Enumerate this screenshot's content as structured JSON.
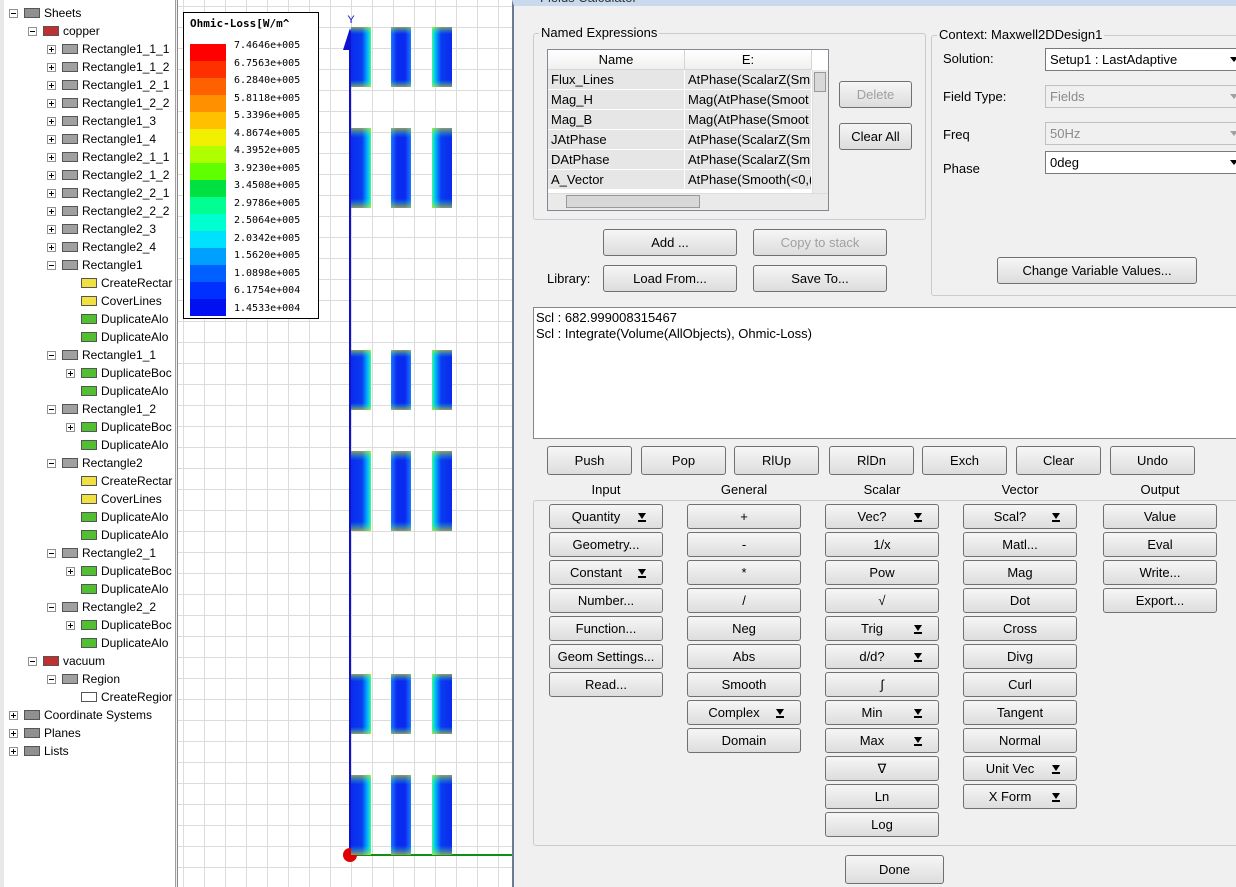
{
  "tree": {
    "nodes": [
      {
        "label": "Sheets",
        "level": 0,
        "expander": "minus"
      },
      {
        "label": "copper",
        "level": 1,
        "expander": "minus"
      },
      {
        "label": "Rectangle1_1_1",
        "level": 2,
        "expander": "plus"
      },
      {
        "label": "Rectangle1_1_2",
        "level": 2,
        "expander": "plus"
      },
      {
        "label": "Rectangle1_2_1",
        "level": 2,
        "expander": "plus"
      },
      {
        "label": "Rectangle1_2_2",
        "level": 2,
        "expander": "plus"
      },
      {
        "label": "Rectangle1_3",
        "level": 2,
        "expander": "plus"
      },
      {
        "label": "Rectangle1_4",
        "level": 2,
        "expander": "plus"
      },
      {
        "label": "Rectangle2_1_1",
        "level": 2,
        "expander": "plus"
      },
      {
        "label": "Rectangle2_1_2",
        "level": 2,
        "expander": "plus"
      },
      {
        "label": "Rectangle2_2_1",
        "level": 2,
        "expander": "plus"
      },
      {
        "label": "Rectangle2_2_2",
        "level": 2,
        "expander": "plus"
      },
      {
        "label": "Rectangle2_3",
        "level": 2,
        "expander": "plus"
      },
      {
        "label": "Rectangle2_4",
        "level": 2,
        "expander": "plus"
      },
      {
        "label": "Rectangle1",
        "level": 2,
        "expander": "minus"
      },
      {
        "label": "CreateRectar",
        "level": 3
      },
      {
        "label": "CoverLines",
        "level": 3
      },
      {
        "label": "DuplicateAlo",
        "level": 3
      },
      {
        "label": "DuplicateAlo",
        "level": 3
      },
      {
        "label": "Rectangle1_1",
        "level": 2,
        "expander": "minus"
      },
      {
        "label": "DuplicateBoc",
        "level": 3,
        "expander": "plus"
      },
      {
        "label": "DuplicateAlo",
        "level": 3
      },
      {
        "label": "Rectangle1_2",
        "level": 2,
        "expander": "minus"
      },
      {
        "label": "DuplicateBoc",
        "level": 3,
        "expander": "plus"
      },
      {
        "label": "DuplicateAlo",
        "level": 3
      },
      {
        "label": "Rectangle2",
        "level": 2,
        "expander": "minus"
      },
      {
        "label": "CreateRectar",
        "level": 3
      },
      {
        "label": "CoverLines",
        "level": 3
      },
      {
        "label": "DuplicateAlo",
        "level": 3
      },
      {
        "label": "DuplicateAlo",
        "level": 3
      },
      {
        "label": "Rectangle2_1",
        "level": 2,
        "expander": "minus"
      },
      {
        "label": "DuplicateBoc",
        "level": 3,
        "expander": "plus"
      },
      {
        "label": "DuplicateAlo",
        "level": 3
      },
      {
        "label": "Rectangle2_2",
        "level": 2,
        "expander": "minus"
      },
      {
        "label": "DuplicateBoc",
        "level": 3,
        "expander": "plus"
      },
      {
        "label": "DuplicateAlo",
        "level": 3
      },
      {
        "label": "vacuum",
        "level": 1,
        "expander": "minus"
      },
      {
        "label": "Region",
        "level": 2,
        "expander": "minus"
      },
      {
        "label": "CreateRegior",
        "level": 3
      },
      {
        "label": "Coordinate Systems",
        "level": 0,
        "expander": "plus"
      },
      {
        "label": "Planes",
        "level": 0,
        "expander": "plus"
      },
      {
        "label": "Lists",
        "level": 0,
        "expander": "plus"
      }
    ]
  },
  "legend": {
    "title": "Ohmic-Loss[W/m^",
    "labels": [
      "7.4646e+005",
      "6.7563e+005",
      "6.2840e+005",
      "5.8118e+005",
      "5.3396e+005",
      "4.8674e+005",
      "4.3952e+005",
      "3.9230e+005",
      "3.4508e+005",
      "2.9786e+005",
      "2.5064e+005",
      "2.0342e+005",
      "1.5620e+005",
      "1.0898e+005",
      "6.1754e+004",
      "1.4533e+004"
    ]
  },
  "viewport": {
    "axis_label": "Y"
  },
  "calculator": {
    "title": "Fields Calculator",
    "named_expressions": {
      "title": "Named Expressions",
      "columns": [
        "Name",
        "E:"
      ],
      "rows": [
        [
          "Flux_Lines",
          "AtPhase(ScalarZ(Sm"
        ],
        [
          "Mag_H",
          "Mag(AtPhase(Smoot"
        ],
        [
          "Mag_B",
          "Mag(AtPhase(Smoot"
        ],
        [
          "JAtPhase",
          "AtPhase(ScalarZ(Sm"
        ],
        [
          "DAtPhase",
          "AtPhase(ScalarZ(Sm"
        ],
        [
          "A_Vector",
          "AtPhase(Smooth(<0,("
        ]
      ],
      "delete": {
        "label": "Delete",
        "enabled": false
      },
      "clear_all": {
        "label": "Clear All",
        "enabled": true
      }
    },
    "add": {
      "label": "Add ...",
      "enabled": true
    },
    "copy_to_stack": {
      "label": "Copy to stack",
      "enabled": false
    },
    "library_label": "Library:",
    "load_from": {
      "label": "Load From...",
      "enabled": true
    },
    "save_to": {
      "label": "Save To...",
      "enabled": true
    },
    "context": {
      "title": "Context: Maxwell2DDesign1",
      "fields": [
        {
          "label": "Solution:",
          "value": "Setup1 : LastAdaptive",
          "enabled": true
        },
        {
          "label": "Field Type:",
          "value": "Fields",
          "enabled": false
        },
        {
          "label": "Freq",
          "value": "50Hz",
          "enabled": false
        },
        {
          "label": "Phase",
          "value": "0deg",
          "enabled": true
        }
      ],
      "change_button": "Change Variable Values..."
    },
    "stack": [
      "Scl : 682.999008315467",
      "Scl : Integrate(Volume(AllObjects), Ohmic-Loss)"
    ],
    "stack_buttons": [
      "Push",
      "Pop",
      "RlUp",
      "RlDn",
      "Exch",
      "Clear",
      "Undo"
    ],
    "columns": [
      {
        "title": "Input",
        "buttons": [
          {
            "label": "Quantity",
            "dropdown": true
          },
          {
            "label": "Geometry..."
          },
          {
            "label": "Constant",
            "dropdown": true
          },
          {
            "label": "Number..."
          },
          {
            "label": "Function..."
          },
          {
            "label": "Geom Settings..."
          },
          {
            "label": "Read..."
          }
        ]
      },
      {
        "title": "General",
        "buttons": [
          {
            "label": "+"
          },
          {
            "label": "-"
          },
          {
            "label": "*"
          },
          {
            "label": "/"
          },
          {
            "label": "Neg"
          },
          {
            "label": "Abs"
          },
          {
            "label": "Smooth"
          },
          {
            "label": "Complex",
            "dropdown": true
          },
          {
            "label": "Domain"
          }
        ]
      },
      {
        "title": "Scalar",
        "buttons": [
          {
            "label": "Vec?",
            "dropdown": true
          },
          {
            "label": "1/x"
          },
          {
            "label": "Pow"
          },
          {
            "label": "√"
          },
          {
            "label": "Trig",
            "dropdown": true
          },
          {
            "label": "d/d?",
            "dropdown": true
          },
          {
            "label": "∫"
          },
          {
            "label": "Min",
            "dropdown": true
          },
          {
            "label": "Max",
            "dropdown": true
          },
          {
            "label": "∇"
          },
          {
            "label": "Ln"
          },
          {
            "label": "Log"
          }
        ]
      },
      {
        "title": "Vector",
        "buttons": [
          {
            "label": "Scal?",
            "dropdown": true
          },
          {
            "label": "Matl..."
          },
          {
            "label": "Mag"
          },
          {
            "label": "Dot"
          },
          {
            "label": "Cross"
          },
          {
            "label": "Divg"
          },
          {
            "label": "Curl"
          },
          {
            "label": "Tangent"
          },
          {
            "label": "Normal"
          },
          {
            "label": "Unit Vec",
            "dropdown": true
          },
          {
            "label": "X Form",
            "dropdown": true
          }
        ]
      },
      {
        "title": "Output",
        "buttons": [
          {
            "label": "Value"
          },
          {
            "label": "Eval"
          },
          {
            "label": "Write..."
          },
          {
            "label": "Export..."
          }
        ]
      }
    ],
    "done": "Done"
  }
}
